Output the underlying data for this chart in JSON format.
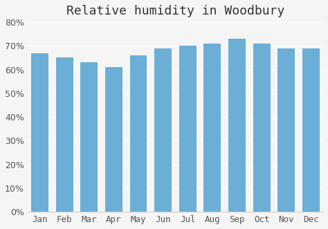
{
  "title": "Relative humidity in Woodbury",
  "months": [
    "Jan",
    "Feb",
    "Mar",
    "Apr",
    "May",
    "Jun",
    "Jul",
    "Aug",
    "Sep",
    "Oct",
    "Nov",
    "Dec"
  ],
  "values": [
    67,
    65,
    63,
    61,
    66,
    69,
    70,
    71,
    73,
    71,
    69,
    69
  ],
  "bar_color": "#6baed6",
  "background_color": "#f5f5f5",
  "ylim": [
    0,
    80
  ],
  "yticks": [
    0,
    10,
    20,
    30,
    40,
    50,
    60,
    70,
    80
  ],
  "title_fontsize": 13,
  "tick_fontsize": 9,
  "grid_color": "#ffffff",
  "bar_edge_color": "none"
}
